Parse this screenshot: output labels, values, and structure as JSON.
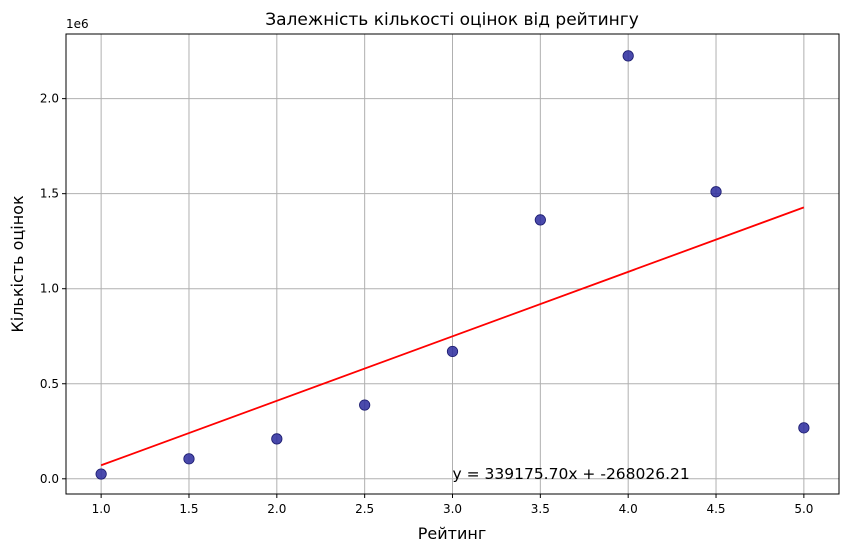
{
  "chart_data": {
    "type": "scatter",
    "title": "Залежність кількості оцінок від рейтингу",
    "xlabel": "Рейтинг",
    "ylabel": "Кількість оцінок",
    "y_offset_label": "1e6",
    "xlim": [
      0.8,
      5.2
    ],
    "ylim": [
      -80000,
      2340000
    ],
    "x_ticks": [
      1.0,
      1.5,
      2.0,
      2.5,
      3.0,
      3.5,
      4.0,
      4.5,
      5.0
    ],
    "x_tick_labels": [
      "1.0",
      "1.5",
      "2.0",
      "2.5",
      "3.0",
      "3.5",
      "4.0",
      "4.5",
      "5.0"
    ],
    "y_ticks": [
      0,
      500000,
      1000000,
      1500000,
      2000000
    ],
    "y_tick_labels": [
      "0.0",
      "0.5",
      "1.0",
      "1.5",
      "2.0"
    ],
    "grid": true,
    "points": {
      "x": [
        1.0,
        1.5,
        2.0,
        2.5,
        3.0,
        3.5,
        4.0,
        4.5,
        5.0
      ],
      "y": [
        25000,
        105000,
        210000,
        388000,
        670000,
        1362000,
        2225000,
        1510000,
        268000
      ],
      "color": "#2a2a9e"
    },
    "fit_line": {
      "slope": 339175.7,
      "intercept": -268026.21,
      "x_range": [
        1.0,
        5.0
      ],
      "color": "#ff0000",
      "annotation": "y = 339175.70x + -268026.21",
      "annotation_x": 3.0,
      "annotation_y": 0
    }
  }
}
